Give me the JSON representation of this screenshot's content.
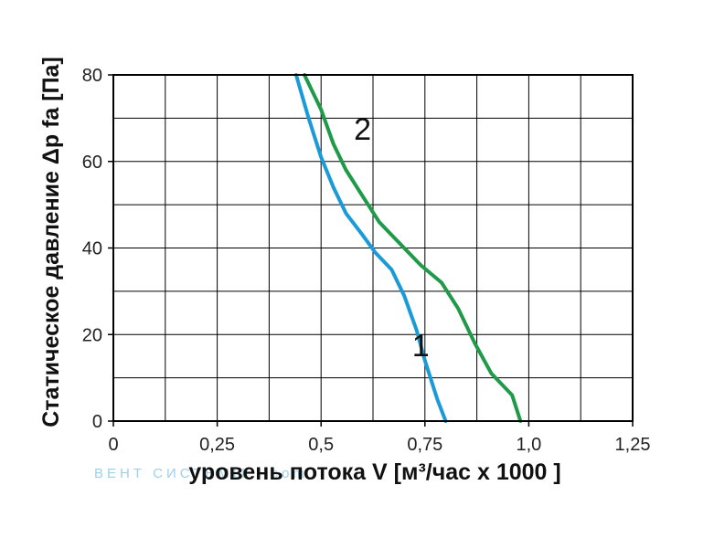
{
  "watermark": "ВЕНТ СИСТЕМЫ . com",
  "chart_data": {
    "type": "line",
    "xlabel": "уровень потока  V [м³/час x 1000 ]",
    "ylabel": "Статическое давление  Δp fa [Па]",
    "xlim": [
      0,
      1.25
    ],
    "ylim": [
      0,
      80
    ],
    "x_ticks": [
      "0",
      "0,25",
      "0,5",
      "0,75",
      "1,0",
      "1,25"
    ],
    "y_ticks": [
      "0",
      "20",
      "40",
      "60",
      "80"
    ],
    "grid": true,
    "series": [
      {
        "name": "1",
        "color": "#1a9ad6",
        "points": [
          [
            0.44,
            80
          ],
          [
            0.47,
            70
          ],
          [
            0.5,
            61
          ],
          [
            0.53,
            54
          ],
          [
            0.56,
            48
          ],
          [
            0.6,
            43
          ],
          [
            0.63,
            39
          ],
          [
            0.67,
            35
          ],
          [
            0.7,
            29
          ],
          [
            0.73,
            21
          ],
          [
            0.75,
            14
          ],
          [
            0.78,
            5
          ],
          [
            0.8,
            0
          ]
        ]
      },
      {
        "name": "2",
        "color": "#1f9a48",
        "points": [
          [
            0.46,
            80
          ],
          [
            0.5,
            72
          ],
          [
            0.53,
            64
          ],
          [
            0.56,
            58
          ],
          [
            0.6,
            52
          ],
          [
            0.64,
            46
          ],
          [
            0.69,
            41
          ],
          [
            0.74,
            36
          ],
          [
            0.79,
            32
          ],
          [
            0.83,
            26
          ],
          [
            0.87,
            18
          ],
          [
            0.91,
            11
          ],
          [
            0.96,
            6
          ],
          [
            0.98,
            0
          ]
        ]
      }
    ]
  }
}
